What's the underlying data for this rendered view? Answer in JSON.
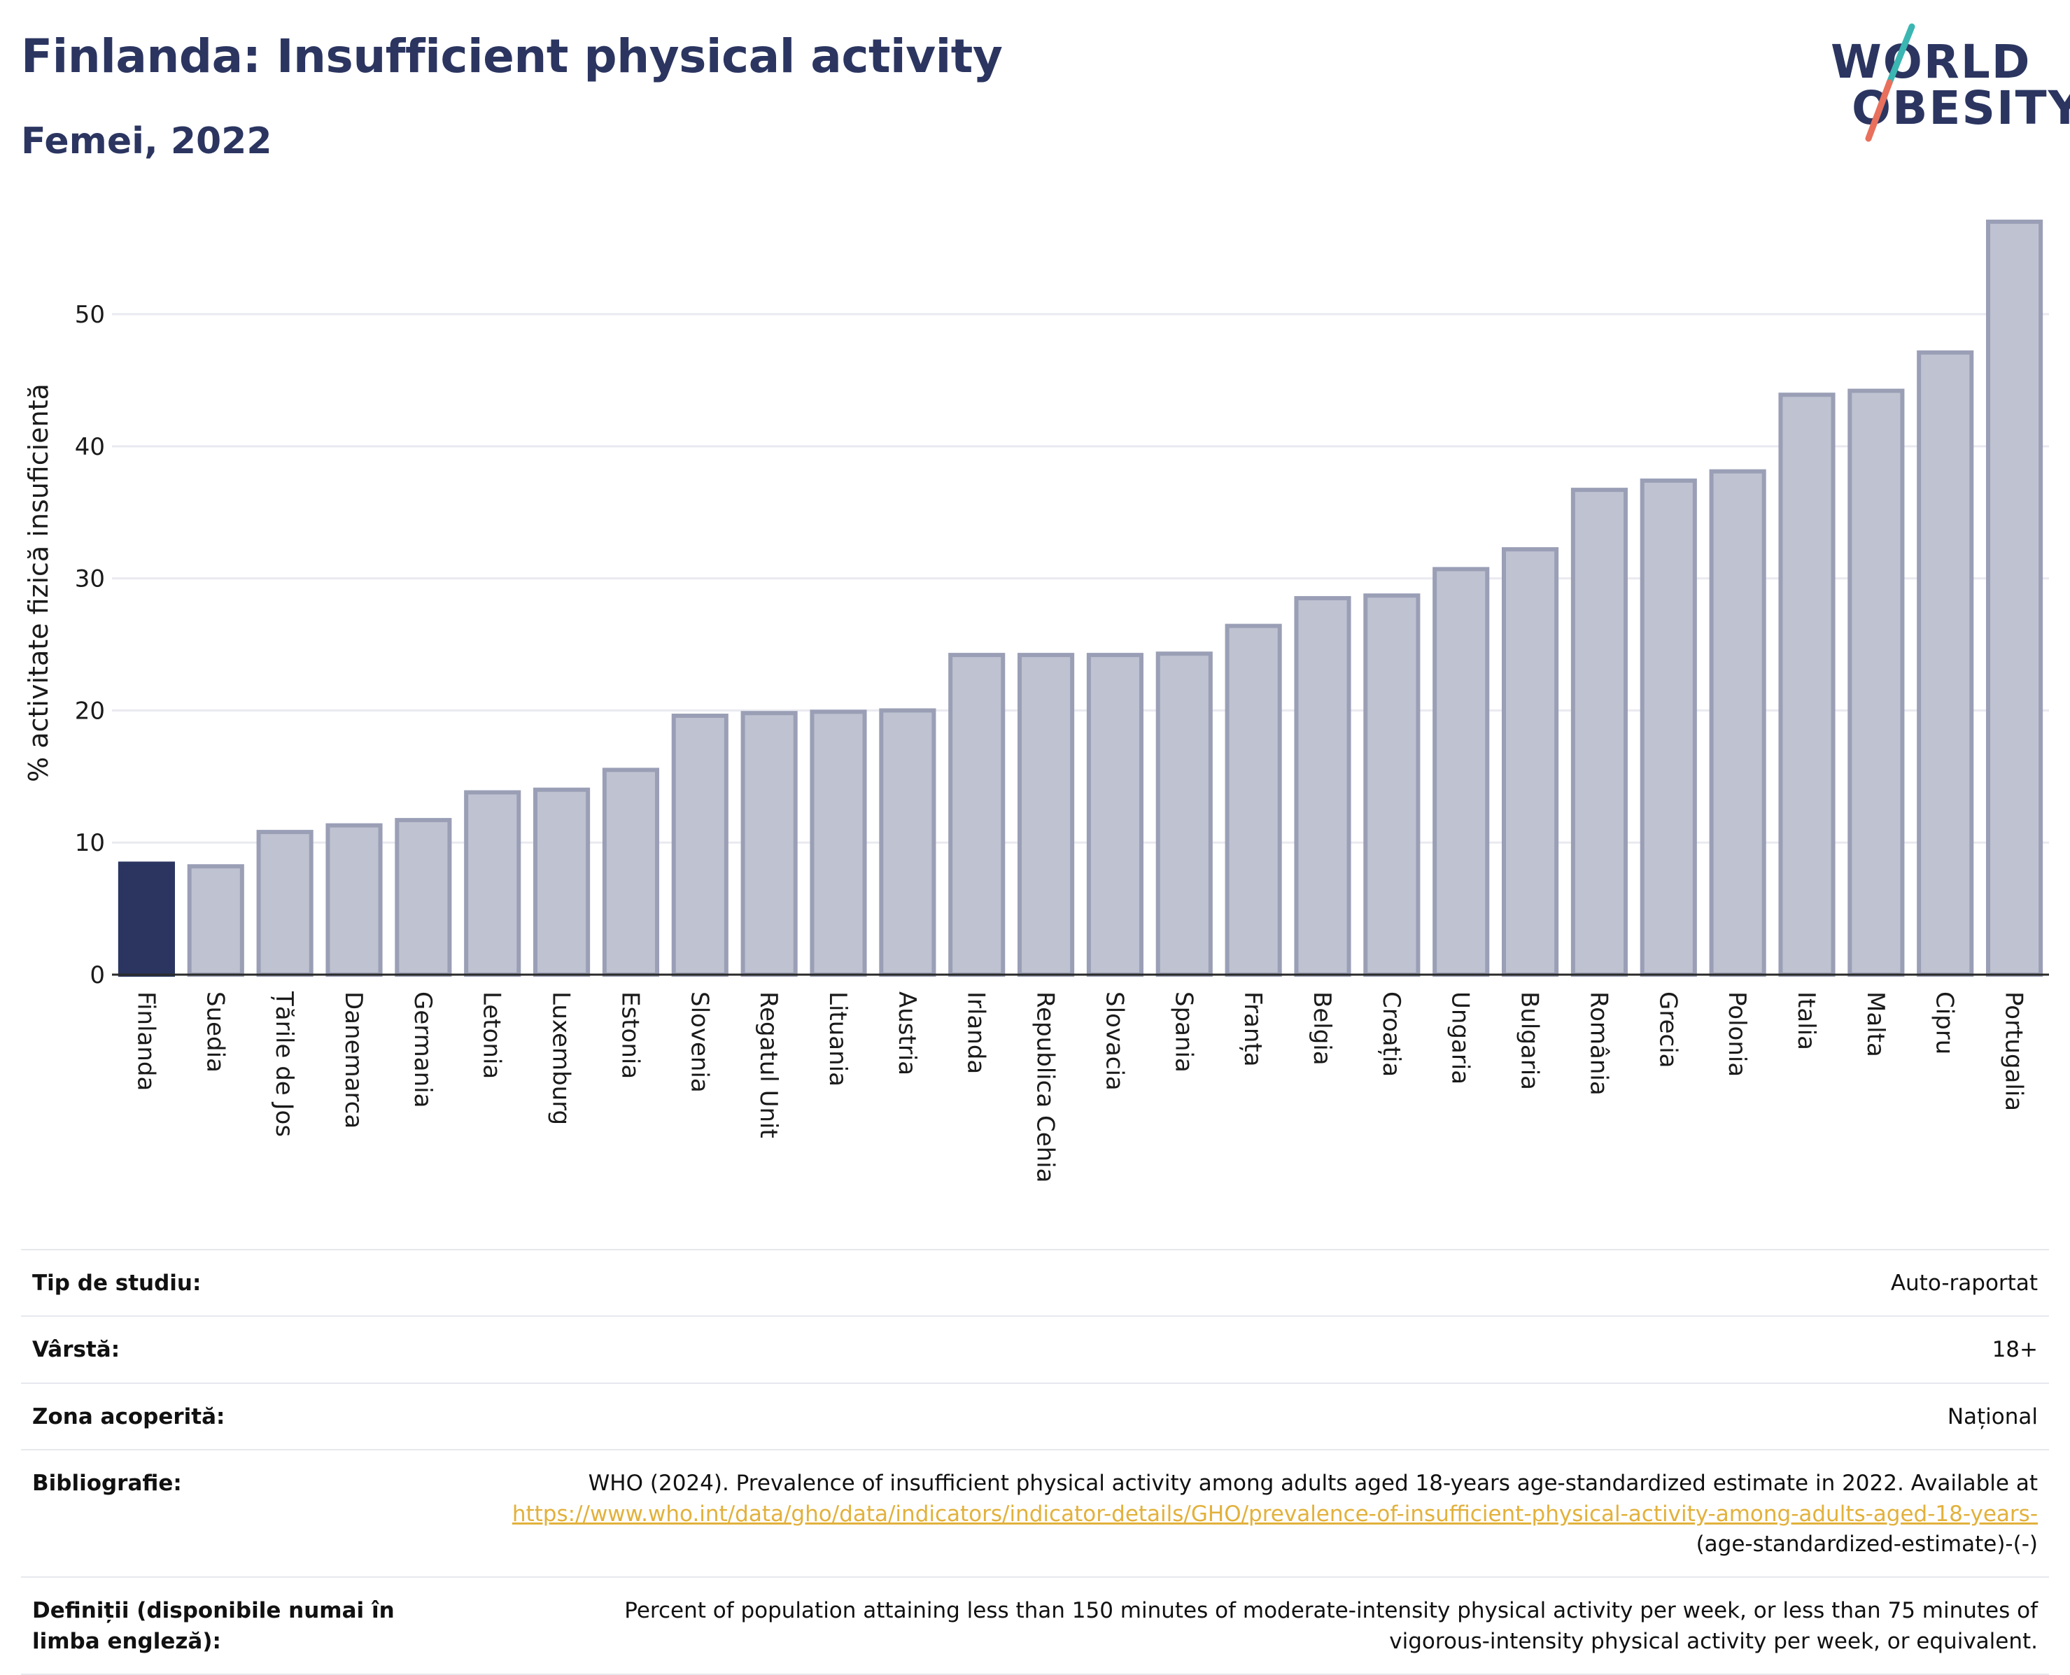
{
  "header": {
    "title": "Finlanda: Insufficient physical activity",
    "subtitle": "Femei, 2022"
  },
  "logo": {
    "line1": "WORLD",
    "line2": "OBESITY",
    "colors": {
      "text": "#2b3560",
      "slash_top": "#3bb6b2",
      "slash_bottom": "#e8705c"
    }
  },
  "colors": {
    "highlight": "#2b3560",
    "bar": "#bfc2d0",
    "bar_border": "#9a9fb6",
    "grid": "#e9eaf0",
    "link": "#e2b13c"
  },
  "chart_data": {
    "type": "bar",
    "ylabel": "% activitate fizică insuficientă",
    "ylim": [
      0,
      58
    ],
    "yticks": [
      0,
      10,
      20,
      30,
      40,
      50
    ],
    "grid": true,
    "highlight": "Finlanda",
    "categories": [
      "Finlanda",
      "Suedia",
      "Țările de Jos",
      "Danemarca",
      "Germania",
      "Letonia",
      "Luxemburg",
      "Estonia",
      "Slovenia",
      "Regatul Unit",
      "Lituania",
      "Austria",
      "Irlanda",
      "Republica Cehia",
      "Slovacia",
      "Spania",
      "Franța",
      "Belgia",
      "Croația",
      "Ungaria",
      "Bulgaria",
      "România",
      "Grecia",
      "Polonia",
      "Italia",
      "Malta",
      "Cipru",
      "Portugalia"
    ],
    "values": [
      8.4,
      8.2,
      10.8,
      11.3,
      11.7,
      13.8,
      14.0,
      15.5,
      19.6,
      19.8,
      19.9,
      20.0,
      24.2,
      24.2,
      24.2,
      24.3,
      26.4,
      28.5,
      28.7,
      30.7,
      32.2,
      36.7,
      37.4,
      38.1,
      43.9,
      44.2,
      47.1,
      57.0
    ]
  },
  "info": {
    "study_type": {
      "label": "Tip de studiu:",
      "value": "Auto-raportat"
    },
    "age": {
      "label": "Vârstă:",
      "value": "18+"
    },
    "coverage": {
      "label": "Zona acoperită:",
      "value": "Național"
    },
    "bibliography": {
      "label": "Bibliografie:",
      "text": "WHO (2024). Prevalence of insufficient physical activity among adults aged 18-years age-standardized estimate in 2022. Available at",
      "link": "https://www.who.int/data/gho/data/indicators/indicator-details/GHO/prevalence-of-insufficient-physical-activity-among-adults-aged-18-years-",
      "suffix": "(age-standardized-estimate)-(-)"
    },
    "definitions": {
      "label": "Definiții (disponibile numai în limba engleză):",
      "value": "Percent of population attaining less than 150 minutes of moderate-intensity physical activity per week, or less than 75 minutes of vigorous-intensity physical activity per week, or equivalent."
    }
  }
}
